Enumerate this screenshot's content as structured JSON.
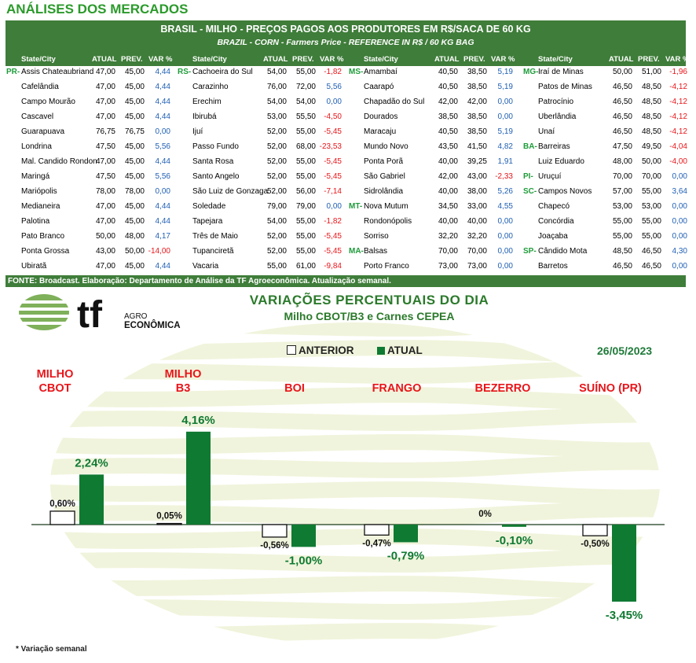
{
  "header": {
    "title": "ANÁLISES DOS MERCADOS"
  },
  "table": {
    "title": "BRASIL - MILHO - PREÇOS PAGOS AOS PRODUTORES EM R$/SACA DE 60 KG",
    "subtitle": "BRAZIL - CORN - Farmers Price - REFERENCE IN R$ / 60 KG BAG",
    "col_headers": [
      "State/City",
      "ATUAL",
      "PREV.",
      "VAR %"
    ],
    "footer": "FONTE: Broadcast. Elaboração: Departamento de Análise da TF Agroeconômica. Atualização semanal.",
    "groups": [
      {
        "rows": [
          {
            "state": "PR-",
            "city": "Assis Chateaubriand",
            "atual": "47,00",
            "prev": "45,00",
            "var": "4,44"
          },
          {
            "state": "",
            "city": "Cafelândia",
            "atual": "47,00",
            "prev": "45,00",
            "var": "4,44"
          },
          {
            "state": "",
            "city": "Campo Mourão",
            "atual": "47,00",
            "prev": "45,00",
            "var": "4,44"
          },
          {
            "state": "",
            "city": "Cascavel",
            "atual": "47,00",
            "prev": "45,00",
            "var": "4,44"
          },
          {
            "state": "",
            "city": "Guarapuava",
            "atual": "76,75",
            "prev": "76,75",
            "var": "0,00"
          },
          {
            "state": "",
            "city": "Londrina",
            "atual": "47,50",
            "prev": "45,00",
            "var": "5,56"
          },
          {
            "state": "",
            "city": "Mal. Candido Rondon",
            "atual": "47,00",
            "prev": "45,00",
            "var": "4,44"
          },
          {
            "state": "",
            "city": "Maringá",
            "atual": "47,50",
            "prev": "45,00",
            "var": "5,56"
          },
          {
            "state": "",
            "city": "Mariópolis",
            "atual": "78,00",
            "prev": "78,00",
            "var": "0,00"
          },
          {
            "state": "",
            "city": "Medianeira",
            "atual": "47,00",
            "prev": "45,00",
            "var": "4,44"
          },
          {
            "state": "",
            "city": "Palotina",
            "atual": "47,00",
            "prev": "45,00",
            "var": "4,44"
          },
          {
            "state": "",
            "city": "Pato Branco",
            "atual": "50,00",
            "prev": "48,00",
            "var": "4,17"
          },
          {
            "state": "",
            "city": "Ponta Grossa",
            "atual": "43,00",
            "prev": "50,00",
            "var": "-14,00"
          },
          {
            "state": "",
            "city": "Ubiratã",
            "atual": "47,00",
            "prev": "45,00",
            "var": "4,44"
          }
        ]
      },
      {
        "rows": [
          {
            "state": "RS-",
            "city": "Cachoeira do Sul",
            "atual": "54,00",
            "prev": "55,00",
            "var": "-1,82"
          },
          {
            "state": "",
            "city": "Carazinho",
            "atual": "76,00",
            "prev": "72,00",
            "var": "5,56"
          },
          {
            "state": "",
            "city": "Erechim",
            "atual": "54,00",
            "prev": "54,00",
            "var": "0,00"
          },
          {
            "state": "",
            "city": "Ibirubá",
            "atual": "53,00",
            "prev": "55,50",
            "var": "-4,50"
          },
          {
            "state": "",
            "city": "Ijuí",
            "atual": "52,00",
            "prev": "55,00",
            "var": "-5,45"
          },
          {
            "state": "",
            "city": "Passo Fundo",
            "atual": "52,00",
            "prev": "68,00",
            "var": "-23,53"
          },
          {
            "state": "",
            "city": "Santa Rosa",
            "atual": "52,00",
            "prev": "55,00",
            "var": "-5,45"
          },
          {
            "state": "",
            "city": "Santo Angelo",
            "atual": "52,00",
            "prev": "55,00",
            "var": "-5,45"
          },
          {
            "state": "",
            "city": "São Luiz de Gonzaga",
            "atual": "52,00",
            "prev": "56,00",
            "var": "-7,14"
          },
          {
            "state": "",
            "city": "Soledade",
            "atual": "79,00",
            "prev": "79,00",
            "var": "0,00"
          },
          {
            "state": "",
            "city": "Tapejara",
            "atual": "54,00",
            "prev": "55,00",
            "var": "-1,82"
          },
          {
            "state": "",
            "city": "Três de Maio",
            "atual": "52,00",
            "prev": "55,00",
            "var": "-5,45"
          },
          {
            "state": "",
            "city": "Tupanciretã",
            "atual": "52,00",
            "prev": "55,00",
            "var": "-5,45"
          },
          {
            "state": "",
            "city": "Vacaria",
            "atual": "55,00",
            "prev": "61,00",
            "var": "-9,84"
          }
        ]
      },
      {
        "rows": [
          {
            "state": "MS-",
            "city": "Amambaí",
            "atual": "40,50",
            "prev": "38,50",
            "var": "5,19"
          },
          {
            "state": "",
            "city": "Caarapó",
            "atual": "40,50",
            "prev": "38,50",
            "var": "5,19"
          },
          {
            "state": "",
            "city": "Chapadão do Sul",
            "atual": "42,00",
            "prev": "42,00",
            "var": "0,00"
          },
          {
            "state": "",
            "city": "Dourados",
            "atual": "38,50",
            "prev": "38,50",
            "var": "0,00"
          },
          {
            "state": "",
            "city": "Maracaju",
            "atual": "40,50",
            "prev": "38,50",
            "var": "5,19"
          },
          {
            "state": "",
            "city": "Mundo Novo",
            "atual": "43,50",
            "prev": "41,50",
            "var": "4,82"
          },
          {
            "state": "",
            "city": "Ponta Porã",
            "atual": "40,00",
            "prev": "39,25",
            "var": "1,91"
          },
          {
            "state": "",
            "city": "São Gabriel",
            "atual": "42,00",
            "prev": "43,00",
            "var": "-2,33"
          },
          {
            "state": "",
            "city": "Sidrolândia",
            "atual": "40,00",
            "prev": "38,00",
            "var": "5,26"
          },
          {
            "state": "MT-",
            "city": "Nova Mutum",
            "atual": "34,50",
            "prev": "33,00",
            "var": "4,55"
          },
          {
            "state": "",
            "city": "Rondonópolis",
            "atual": "40,00",
            "prev": "40,00",
            "var": "0,00"
          },
          {
            "state": "",
            "city": "Sorriso",
            "atual": "32,20",
            "prev": "32,20",
            "var": "0,00"
          },
          {
            "state": "MA-",
            "city": "Balsas",
            "atual": "70,00",
            "prev": "70,00",
            "var": "0,00"
          },
          {
            "state": "",
            "city": "Porto Franco",
            "atual": "73,00",
            "prev": "73,00",
            "var": "0,00"
          }
        ]
      },
      {
        "rows": [
          {
            "state": "MG-",
            "city": "Iraí de Minas",
            "atual": "50,00",
            "prev": "51,00",
            "var": "-1,96"
          },
          {
            "state": "",
            "city": "Patos de Minas",
            "atual": "46,50",
            "prev": "48,50",
            "var": "-4,12"
          },
          {
            "state": "",
            "city": "Patrocínio",
            "atual": "46,50",
            "prev": "48,50",
            "var": "-4,12"
          },
          {
            "state": "",
            "city": "Uberlândia",
            "atual": "46,50",
            "prev": "48,50",
            "var": "-4,12"
          },
          {
            "state": "",
            "city": "Unaí",
            "atual": "46,50",
            "prev": "48,50",
            "var": "-4,12"
          },
          {
            "state": "BA-",
            "city": "Barreiras",
            "atual": "47,50",
            "prev": "49,50",
            "var": "-4,04"
          },
          {
            "state": "",
            "city": "Luiz Eduardo",
            "atual": "48,00",
            "prev": "50,00",
            "var": "-4,00"
          },
          {
            "state": "PI-",
            "city": "Uruçuí",
            "atual": "70,00",
            "prev": "70,00",
            "var": "0,00"
          },
          {
            "state": "SC-",
            "city": "Campos Novos",
            "atual": "57,00",
            "prev": "55,00",
            "var": "3,64"
          },
          {
            "state": "",
            "city": "Chapecó",
            "atual": "53,00",
            "prev": "53,00",
            "var": "0,00"
          },
          {
            "state": "",
            "city": "Concórdia",
            "atual": "55,00",
            "prev": "55,00",
            "var": "0,00"
          },
          {
            "state": "",
            "city": "Joaçaba",
            "atual": "55,00",
            "prev": "55,00",
            "var": "0,00"
          },
          {
            "state": "SP-",
            "city": "Cândido Mota",
            "atual": "48,50",
            "prev": "46,50",
            "var": "4,30"
          },
          {
            "state": "",
            "city": "Barretos",
            "atual": "46,50",
            "prev": "46,50",
            "var": "0,00"
          }
        ]
      }
    ]
  },
  "logo": {
    "mark": "tf",
    "line1": "AGRO",
    "line2": "ECONÔMICA"
  },
  "chart_data": {
    "type": "bar",
    "title": "VARIAÇÕES PERCENTUAIS DO DIA",
    "subtitle": "Milho CBOT/B3 e Carnes CEPEA",
    "date": "26/05/2023",
    "categories": [
      "MILHO CBOT",
      "MILHO B3",
      "BOI",
      "FRANGO",
      "BEZERRO",
      "SUÍNO (PR)"
    ],
    "category_lines": [
      [
        "MILHO",
        "CBOT"
      ],
      [
        "MILHO",
        "B3"
      ],
      [
        "BOI"
      ],
      [
        "FRANGO"
      ],
      [
        "BEZERRO"
      ],
      [
        "SUÍNO (PR)"
      ]
    ],
    "series": [
      {
        "name": "ANTERIOR",
        "color": "#ffffff",
        "values": [
          0.6,
          0.05,
          -0.56,
          -0.47,
          0,
          -0.5
        ],
        "labels": [
          "0,60%",
          "0,05%",
          "-0,56%",
          "-0,47%",
          "0%",
          "-0,50%"
        ]
      },
      {
        "name": "ATUAL",
        "color": "#0f7a32",
        "values": [
          2.24,
          4.16,
          -1.0,
          -0.79,
          -0.1,
          -3.45
        ],
        "labels": [
          "2,24%",
          "4,16%",
          "-1,00%",
          "-0,79%",
          "-0,10%",
          "-3,45%"
        ]
      }
    ],
    "category_color": "#e8151a",
    "footnote": "* Variação semanal"
  }
}
